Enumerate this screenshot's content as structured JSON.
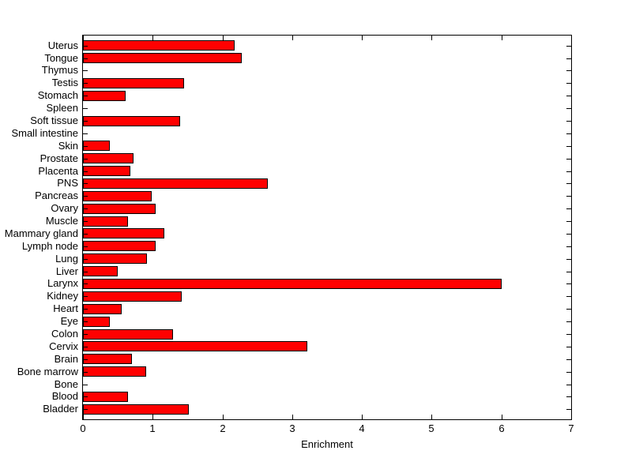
{
  "figure": {
    "background": "#ffffff"
  },
  "chart_data": {
    "type": "bar",
    "orientation": "horizontal",
    "title": "",
    "xlabel": "Enrichment",
    "ylabel": "",
    "xlim": [
      0,
      7
    ],
    "xticks": [
      0,
      1,
      2,
      3,
      4,
      5,
      6,
      7
    ],
    "grid": false,
    "legend_position": "none",
    "bar_color": "#ff0000",
    "bar_edge_color": "#000000",
    "axis_color": "#000000",
    "categories_order": "top-to-bottom",
    "categories": [
      "Uterus",
      "Tongue",
      "Thymus",
      "Testis",
      "Stomach",
      "Spleen",
      "Soft tissue",
      "Small intestine",
      "Skin",
      "Prostate",
      "Placenta",
      "PNS",
      "Pancreas",
      "Ovary",
      "Muscle",
      "Mammary gland",
      "Lymph node",
      "Lung",
      "Liver",
      "Larynx",
      "Kidney",
      "Heart",
      "Eye",
      "Colon",
      "Cervix",
      "Brain",
      "Bone marrow",
      "Bone",
      "Blood",
      "Bladder"
    ],
    "values": [
      2.18,
      2.28,
      0,
      1.45,
      0.61,
      0,
      1.39,
      0,
      0.39,
      0.73,
      0.68,
      2.65,
      0.99,
      1.04,
      0.65,
      1.17,
      1.04,
      0.92,
      0.5,
      6.0,
      1.42,
      0.55,
      0.38,
      1.29,
      3.22,
      0.7,
      0.91,
      0,
      0.65,
      1.52
    ]
  }
}
